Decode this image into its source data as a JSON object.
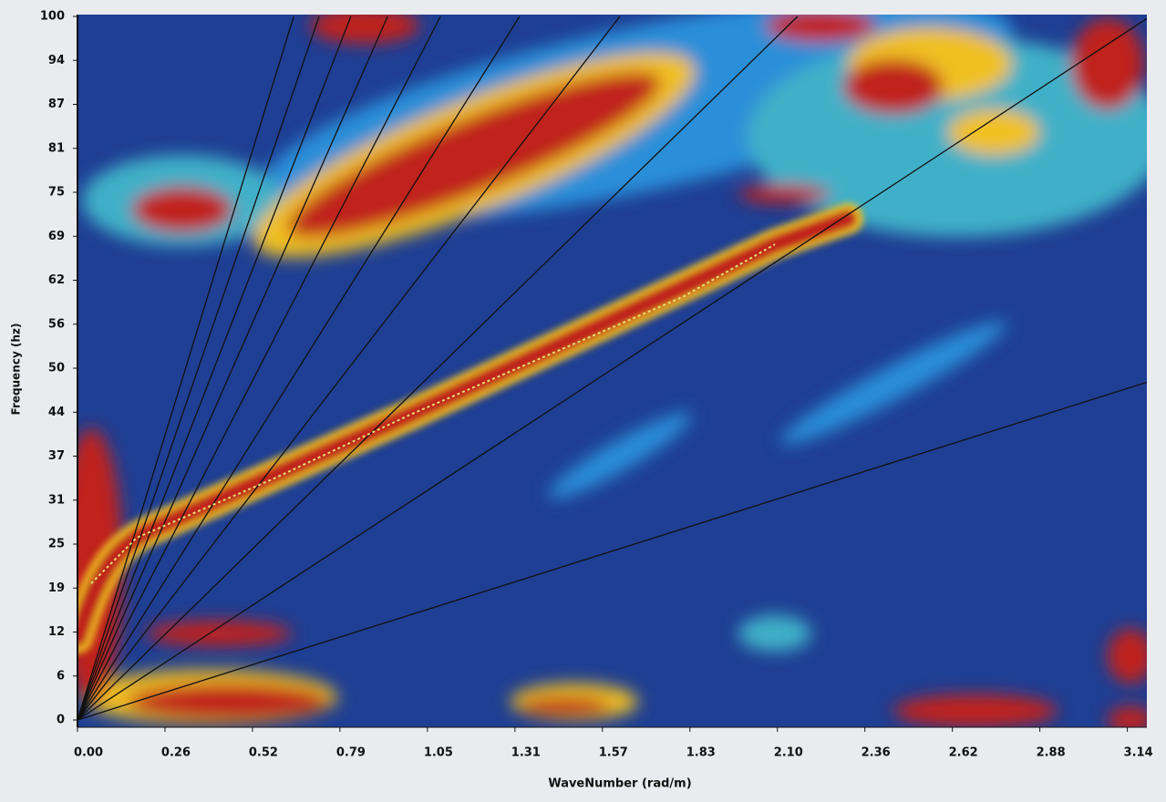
{
  "chart_data": {
    "type": "line",
    "xlabel": "WaveNumber (rad/m)",
    "ylabel": "Frequency (hz)",
    "xlim": [
      0,
      3.2
    ],
    "ylim": [
      0,
      100
    ],
    "xticks": [
      {
        "value": 0,
        "label": "0.00"
      },
      {
        "value": 0.2618,
        "label": "0.26"
      },
      {
        "value": 0.5236,
        "label": "0.52"
      },
      {
        "value": 0.7854,
        "label": "0.79"
      },
      {
        "value": 1.0472,
        "label": "1.05"
      },
      {
        "value": 1.309,
        "label": "1.31"
      },
      {
        "value": 1.5708,
        "label": "1.57"
      },
      {
        "value": 1.8326,
        "label": "1.83"
      },
      {
        "value": 2.0944,
        "label": "2.10"
      },
      {
        "value": 2.3562,
        "label": "2.36"
      },
      {
        "value": 2.618,
        "label": "2.62"
      },
      {
        "value": 2.8798,
        "label": "2.88"
      },
      {
        "value": 3.1416,
        "label": "3.14"
      }
    ],
    "yticks": [
      0,
      {
        "value": 6.25,
        "label": "6"
      },
      {
        "value": 12.5,
        "label": "12"
      },
      {
        "value": 18.75,
        "label": "19"
      },
      25,
      {
        "value": 31.25,
        "label": "31"
      },
      {
        "value": 37.5,
        "label": "37"
      },
      {
        "value": 43.75,
        "label": "44"
      },
      50,
      {
        "value": 56.25,
        "label": "56"
      },
      {
        "value": 62.5,
        "label": "62"
      },
      {
        "value": 68.75,
        "label": "69"
      },
      75,
      {
        "value": 81.25,
        "label": "81"
      },
      {
        "value": 87.5,
        "label": "87"
      },
      {
        "value": 93.75,
        "label": "94"
      },
      100
    ],
    "series": [
      {
        "color": "#111111",
        "x": [
          0,
          0.647
        ],
        "values": [
          0,
          100
        ]
      },
      {
        "color": "#111111",
        "x": [
          0,
          0.723
        ],
        "values": [
          0,
          100
        ]
      },
      {
        "color": "#111111",
        "x": [
          0,
          0.818
        ],
        "values": [
          0,
          100
        ]
      },
      {
        "color": "#111111",
        "x": [
          0,
          0.928
        ],
        "values": [
          0,
          100
        ]
      },
      {
        "color": "#111111",
        "x": [
          0,
          1.086
        ],
        "values": [
          0,
          100
        ]
      },
      {
        "color": "#111111",
        "x": [
          0,
          1.323
        ],
        "values": [
          0,
          100
        ]
      },
      {
        "color": "#111111",
        "x": [
          0,
          1.623
        ],
        "values": [
          0,
          100
        ]
      },
      {
        "color": "#111111",
        "x": [
          0,
          2.155
        ],
        "values": [
          0,
          100
        ]
      },
      {
        "color": "#111111",
        "x": [
          0,
          3.2
        ],
        "values": [
          0,
          99.7
        ]
      },
      {
        "color": "#111111",
        "x": [
          0,
          3.2
        ],
        "values": [
          0,
          48
        ]
      },
      {
        "color": "#e8e070",
        "x": [
          0.041,
          0.177,
          0.587,
          0.996,
          1.405,
          1.814,
          2.087
        ],
        "values": [
          19.4,
          25.9,
          34.3,
          43.4,
          51.8,
          60.2,
          67.6
        ]
      }
    ]
  }
}
